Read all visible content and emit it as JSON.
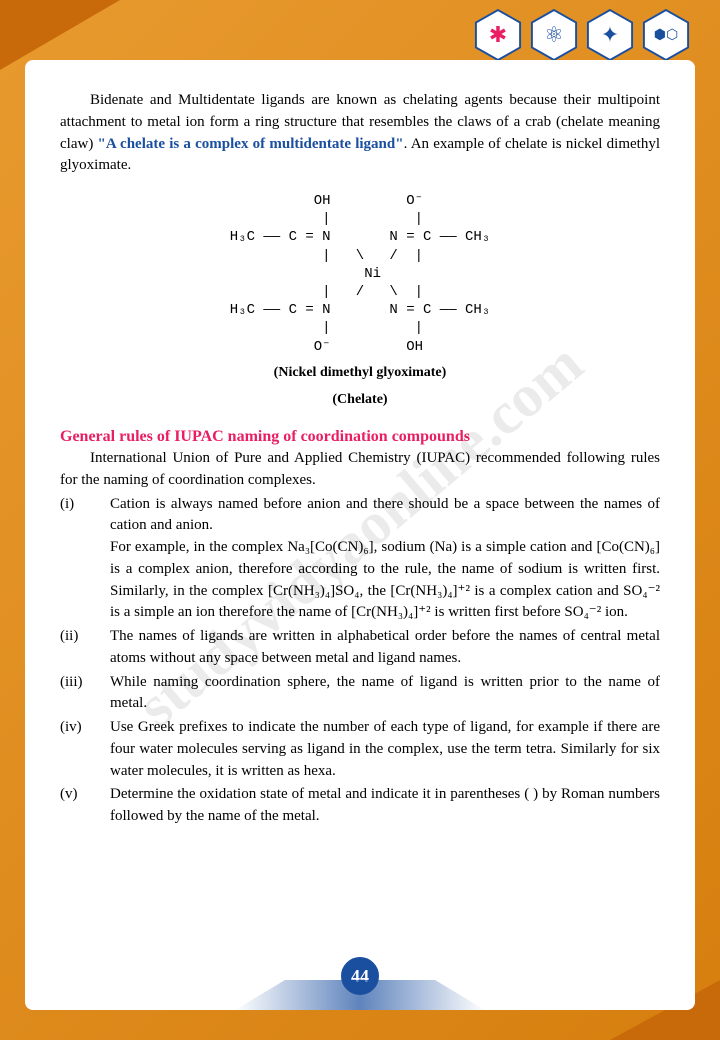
{
  "page_number": "44",
  "watermark": "studyvidyaonline.com",
  "intro": {
    "text_before_quote": "Bidenate and Multidentate ligands are known as chelating agents because their multipoint attachment to metal ion form a ring structure that resembles the claws of a crab (chelate meaning claw) ",
    "quote": "\"A chelate is a complex of multidentate ligand\"",
    "text_after_quote": ". An example of chelate is nickel dimethyl glyoximate."
  },
  "structure": {
    "diagram": "          OH         O⁻\n           |          |\nH₃C —— C = N       N = C —— CH₃\n           |   \\   /  |\n                Ni\n           |   /   \\  |\nH₃C —— C = N       N = C —— CH₃\n           |          |\n          O⁻         OH",
    "caption1": "(Nickel dimethyl glyoximate)",
    "caption2": "(Chelate)"
  },
  "section_heading": "General rules of IUPAC naming of coordination compounds",
  "body": "International Union of Pure and Applied Chemistry (IUPAC) recommended following rules for the naming of coordination complexes.",
  "rules": [
    {
      "num": "(i)",
      "text": "Cation is always named before anion and there should be a space between the names of cation and anion.\nFor example, in the complex Na₃[Co(CN)₆], sodium (Na) is a simple cation and [Co(CN)₆] is a complex anion, therefore according to the rule, the name of sodium is written first. Similarly, in the complex [Cr(NH₃)₄]SO₄, the [Cr(NH₃)₄]⁺² is a complex cation and SO₄⁻² is a simple an ion therefore the name of [Cr(NH₃)₄]⁺² is written first before SO₄⁻² ion."
    },
    {
      "num": "(ii)",
      "text": "The names of ligands are written in alphabetical order before the names of central metal atoms without any space between metal and ligand names."
    },
    {
      "num": "(iii)",
      "text": "While naming coordination sphere, the name of ligand is written prior to the name of metal."
    },
    {
      "num": "(iv)",
      "text": "Use Greek prefixes to indicate the number of each type of ligand, for example if there are four water molecules serving as ligand in the complex, use the term tetra. Similarly for six water molecules, it is written as hexa."
    },
    {
      "num": "(v)",
      "text": "Determine the oxidation state of metal and indicate it in parentheses ( ) by Roman numbers followed by the name of the metal."
    }
  ],
  "icons": [
    "molecule-icon",
    "atom-icon",
    "network-icon",
    "chain-icon"
  ],
  "colors": {
    "bg_gradient_start": "#e89a2e",
    "bg_gradient_end": "#d67f0f",
    "quote_color": "#1a4fa0",
    "heading_color": "#e91e63",
    "page_badge": "#1a4fa0"
  }
}
